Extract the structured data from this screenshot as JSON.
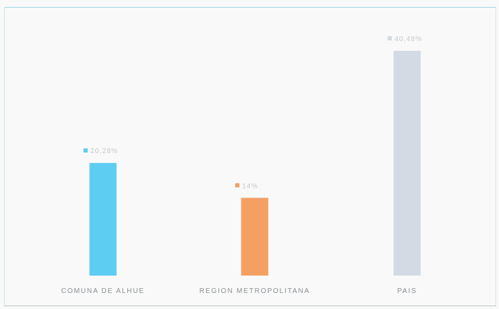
{
  "chart_data": {
    "type": "bar",
    "title": "",
    "xlabel": "",
    "ylabel": "",
    "categories": [
      "COMUNA DE ALHUE",
      "REGION METROPOLITANA",
      "PAIS"
    ],
    "values": [
      20.28,
      14,
      40.48
    ],
    "data_labels": [
      "20,28%",
      "14%",
      "40,48%"
    ],
    "ylim": [
      0,
      40.48
    ],
    "grid": false,
    "legend": "none",
    "colors": [
      "#5dcdf2",
      "#f4a063",
      "#d3dae3"
    ]
  }
}
